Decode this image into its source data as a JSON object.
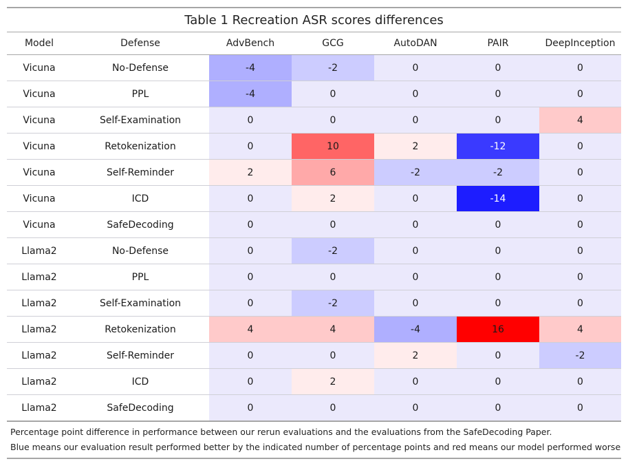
{
  "title": "Table 1 Recreation ASR scores differences",
  "columns": [
    "Model",
    "Defense",
    "AdvBench",
    "GCG",
    "AutoDAN",
    "PAIR",
    "DeepInception"
  ],
  "rows": [
    {
      "model": "Vicuna",
      "defense": "No-Defense",
      "values": [
        -4,
        -2,
        0,
        0,
        0
      ]
    },
    {
      "model": "Vicuna",
      "defense": "PPL",
      "values": [
        -4,
        0,
        0,
        0,
        0
      ]
    },
    {
      "model": "Vicuna",
      "defense": "Self-Examination",
      "values": [
        0,
        0,
        0,
        0,
        4
      ]
    },
    {
      "model": "Vicuna",
      "defense": "Retokenization",
      "values": [
        0,
        10,
        2,
        -12,
        0
      ]
    },
    {
      "model": "Vicuna",
      "defense": "Self-Reminder",
      "values": [
        2,
        6,
        -2,
        -2,
        0
      ]
    },
    {
      "model": "Vicuna",
      "defense": "ICD",
      "values": [
        0,
        2,
        0,
        -14,
        0
      ]
    },
    {
      "model": "Vicuna",
      "defense": "SafeDecoding",
      "values": [
        0,
        0,
        0,
        0,
        0
      ]
    },
    {
      "model": "Llama2",
      "defense": "No-Defense",
      "values": [
        0,
        -2,
        0,
        0,
        0
      ]
    },
    {
      "model": "Llama2",
      "defense": "PPL",
      "values": [
        0,
        0,
        0,
        0,
        0
      ]
    },
    {
      "model": "Llama2",
      "defense": "Self-Examination",
      "values": [
        0,
        -2,
        0,
        0,
        0
      ]
    },
    {
      "model": "Llama2",
      "defense": "Retokenization",
      "values": [
        4,
        4,
        -4,
        16,
        4
      ]
    },
    {
      "model": "Llama2",
      "defense": "Self-Reminder",
      "values": [
        0,
        0,
        2,
        0,
        -2
      ]
    },
    {
      "model": "Llama2",
      "defense": "ICD",
      "values": [
        0,
        2,
        0,
        0,
        0
      ]
    },
    {
      "model": "Llama2",
      "defense": "SafeDecoding",
      "values": [
        0,
        0,
        0,
        0,
        0
      ]
    }
  ],
  "notes": [
    "Percentage point difference in performance between our rerun evaluations and the evaluations from the SafeDecoding Paper.",
    "Blue means our evaluation result performed better by the indicated number of percentage points and red means our model performed worse"
  ],
  "colors": {
    "zero": "#ebe9fc",
    "blue_max": "#0000ff",
    "red_max": "#ff0000"
  }
}
